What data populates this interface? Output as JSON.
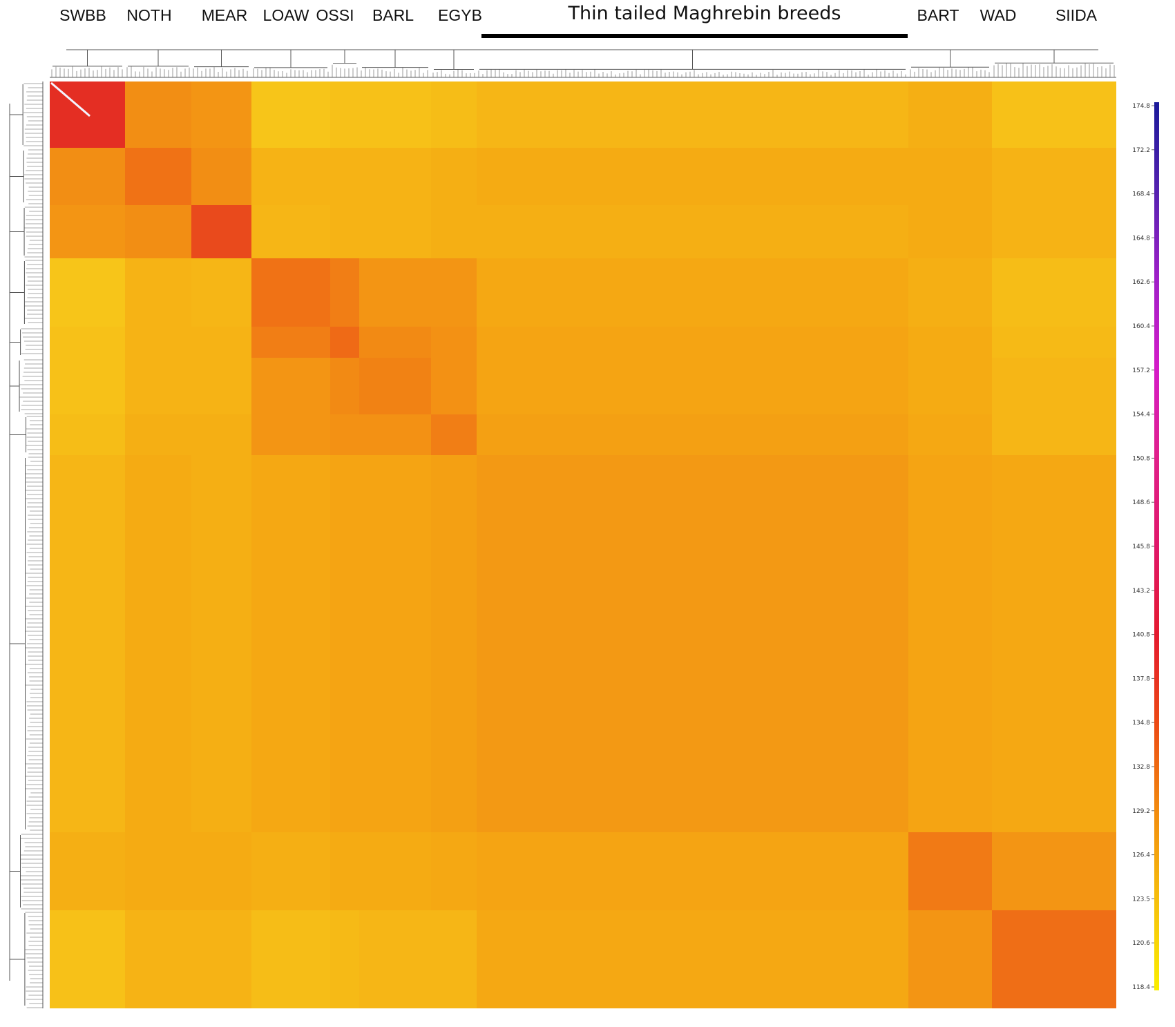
{
  "chart_data": {
    "type": "heatmap",
    "title": "Thin tailed Maghrebin breeds",
    "breeds": [
      "SWBB",
      "NOTH",
      "MEAR",
      "LOAW",
      "OSSI",
      "BARL",
      "EGYB",
      "BART",
      "WAD",
      "SIIDA"
    ],
    "colorbar": {
      "ticks": [
        "174.8",
        "172.2",
        "168.4",
        "164.8",
        "162.6",
        "160.4",
        "157.2",
        "154.4",
        "150.8",
        "148.6",
        "145.8",
        "143.2",
        "140.8",
        "137.8",
        "134.8",
        "132.8",
        "129.2",
        "126.4",
        "123.5",
        "120.6",
        "118.4"
      ],
      "colors": [
        "#1a1a9a",
        "#5522b0",
        "#a020c8",
        "#d41cc8",
        "#e0208a",
        "#e0186a",
        "#e41a2e",
        "#ec4a14",
        "#f28c0e",
        "#f6c00c",
        "#faee00"
      ]
    },
    "values": [
      [
        0.92,
        0.48,
        0.44,
        0.18,
        0.2,
        0.2,
        0.22,
        0.26,
        0.3,
        0.2
      ],
      [
        0.48,
        0.62,
        0.48,
        0.28,
        0.28,
        0.28,
        0.3,
        0.32,
        0.32,
        0.28
      ],
      [
        0.44,
        0.48,
        0.8,
        0.26,
        0.28,
        0.28,
        0.3,
        0.3,
        0.32,
        0.28
      ],
      [
        0.18,
        0.28,
        0.26,
        0.62,
        0.56,
        0.44,
        0.44,
        0.34,
        0.3,
        0.22
      ],
      [
        0.2,
        0.28,
        0.28,
        0.56,
        0.66,
        0.5,
        0.46,
        0.36,
        0.32,
        0.24
      ],
      [
        0.2,
        0.28,
        0.28,
        0.44,
        0.5,
        0.54,
        0.46,
        0.36,
        0.32,
        0.26
      ],
      [
        0.22,
        0.3,
        0.3,
        0.44,
        0.46,
        0.46,
        0.56,
        0.38,
        0.34,
        0.26
      ],
      [
        0.26,
        0.32,
        0.3,
        0.34,
        0.36,
        0.36,
        0.38,
        0.42,
        0.36,
        0.34
      ],
      [
        0.3,
        0.32,
        0.32,
        0.3,
        0.32,
        0.32,
        0.34,
        0.36,
        0.58,
        0.44
      ],
      [
        0.2,
        0.28,
        0.28,
        0.22,
        0.24,
        0.26,
        0.26,
        0.34,
        0.44,
        0.64
      ]
    ]
  }
}
